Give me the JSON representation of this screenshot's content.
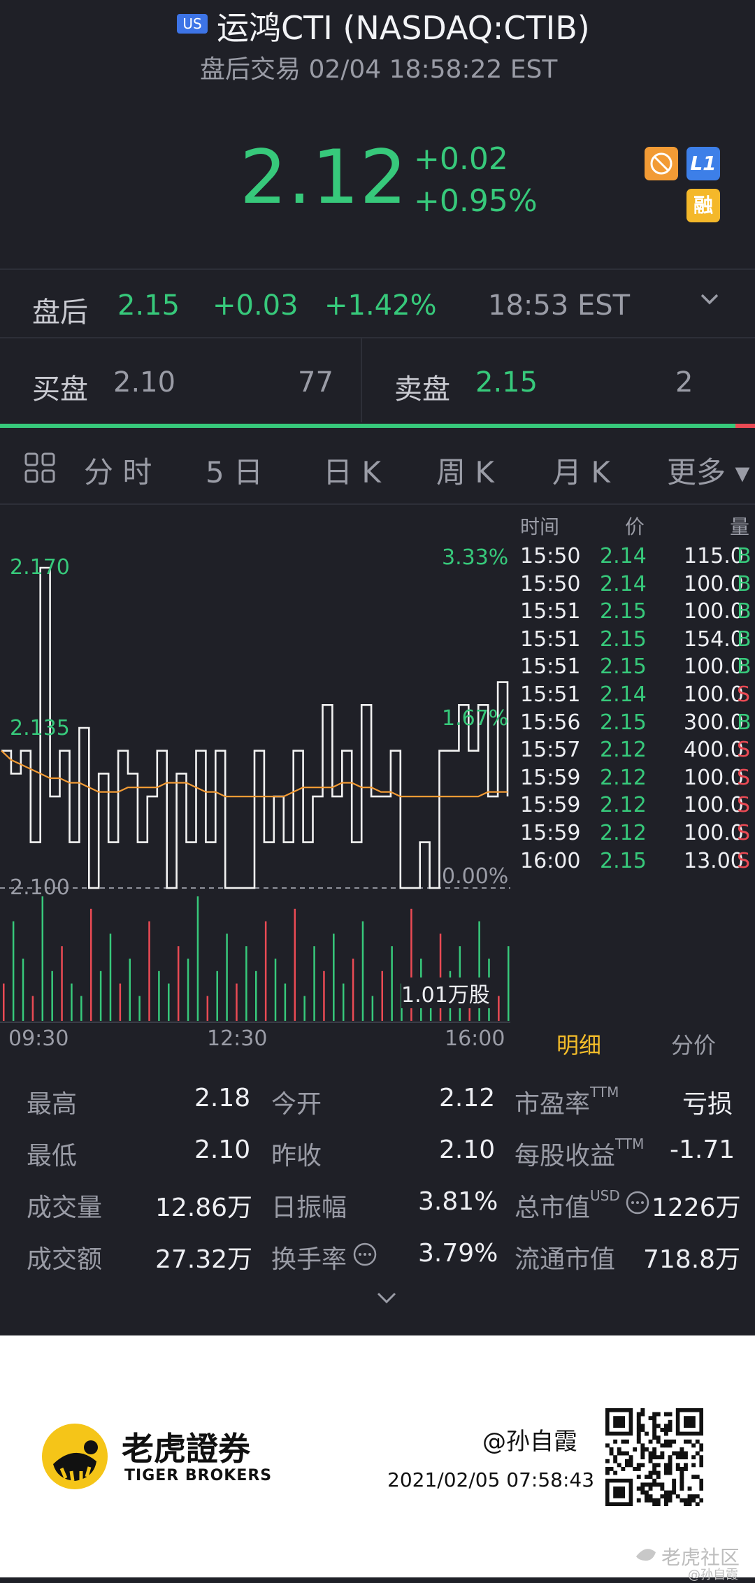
{
  "header": {
    "market_badge": "US",
    "title": "运鸿CTI (NASDAQ:CTIB)",
    "subtitle": "盘后交易 02/04 18:58:22 EST",
    "price": "2.12",
    "change": "+0.02",
    "change_pct": "+0.95%",
    "badge_l1": "L1",
    "badge_margin": "融"
  },
  "after_hours": {
    "label": "盘后",
    "price": "2.15",
    "change": "+0.03",
    "change_pct": "+1.42%",
    "time": "18:53 EST"
  },
  "bid_ask": {
    "bid_label": "买盘",
    "bid_price": "2.10",
    "bid_size": "77",
    "ask_label": "卖盘",
    "ask_price": "2.15",
    "ask_size": "2"
  },
  "tabs": [
    "分 时",
    "5 日",
    "日 K",
    "周 K",
    "月 K",
    "更多 ▾"
  ],
  "chart_labels": {
    "price_high": "2.170",
    "price_mid": "2.135",
    "price_low": "2.100",
    "pct_high": "3.33%",
    "pct_mid": "1.67%",
    "pct_low": "0.00%",
    "volume": "1.01万股",
    "time_start": "09:30",
    "time_mid": "12:30",
    "time_end": "16:00"
  },
  "chart_data": {
    "type": "line",
    "x_range": [
      "09:30",
      "16:00"
    ],
    "ylim": [
      2.1,
      2.17
    ],
    "series": [
      {
        "values": [
          2.13,
          2.125,
          2.13,
          2.11,
          2.17,
          2.12,
          2.13,
          2.11,
          2.135,
          2.1,
          2.125,
          2.11,
          2.13,
          2.125,
          2.11,
          2.12,
          2.13,
          2.1,
          2.125,
          2.11,
          2.13,
          2.11,
          2.13,
          2.1,
          2.1,
          2.1,
          2.13,
          2.11,
          2.12,
          2.11,
          2.13,
          2.11,
          2.12,
          2.14,
          2.12,
          2.13,
          2.11,
          2.14,
          2.12,
          2.12,
          2.13,
          2.1,
          2.1,
          2.11,
          2.1,
          2.13,
          2.13,
          2.14,
          2.13,
          2.14,
          2.12,
          2.145,
          2.12
        ]
      },
      {
        "values": [
          2.13,
          2.128,
          2.127,
          2.126,
          2.125,
          2.124,
          2.124,
          2.123,
          2.123,
          2.122,
          2.121,
          2.121,
          2.121,
          2.122,
          2.122,
          2.122,
          2.122,
          2.123,
          2.123,
          2.123,
          2.122,
          2.121,
          2.121,
          2.12,
          2.12,
          2.12,
          2.12,
          2.12,
          2.12,
          2.12,
          2.121,
          2.122,
          2.122,
          2.122,
          2.122,
          2.123,
          2.123,
          2.122,
          2.122,
          2.121,
          2.121,
          2.12,
          2.12,
          2.12,
          2.12,
          2.12,
          2.12,
          2.12,
          2.12,
          2.12,
          2.121,
          2.121,
          2.121
        ]
      }
    ],
    "volume": [
      3,
      8,
      5,
      2,
      10,
      4,
      6,
      3,
      2,
      9,
      4,
      7,
      3,
      5,
      2,
      8,
      4,
      3,
      6,
      5,
      10,
      2,
      4,
      7,
      3,
      6,
      4,
      8,
      5,
      3,
      9,
      2,
      6,
      4,
      7,
      3,
      5,
      8,
      2,
      4,
      6,
      3,
      9,
      5,
      2,
      7,
      4,
      6,
      3,
      8,
      5,
      2,
      6
    ]
  },
  "trades": {
    "headers": {
      "time": "时间",
      "price": "价",
      "volume": "量"
    },
    "rows": [
      {
        "time": "15:50",
        "price": "2.14",
        "vol": "115.0",
        "side": "B"
      },
      {
        "time": "15:50",
        "price": "2.14",
        "vol": "100.0",
        "side": "B"
      },
      {
        "time": "15:51",
        "price": "2.15",
        "vol": "100.0",
        "side": "B"
      },
      {
        "time": "15:51",
        "price": "2.15",
        "vol": "154.0",
        "side": "B"
      },
      {
        "time": "15:51",
        "price": "2.15",
        "vol": "100.0",
        "side": "B"
      },
      {
        "time": "15:51",
        "price": "2.14",
        "vol": "100.0",
        "side": "S"
      },
      {
        "time": "15:56",
        "price": "2.15",
        "vol": "300.0",
        "side": "B"
      },
      {
        "time": "15:57",
        "price": "2.12",
        "vol": "400.0",
        "side": "S"
      },
      {
        "time": "15:59",
        "price": "2.12",
        "vol": "100.0",
        "side": "S"
      },
      {
        "time": "15:59",
        "price": "2.12",
        "vol": "100.0",
        "side": "S"
      },
      {
        "time": "15:59",
        "price": "2.12",
        "vol": "100.0",
        "side": "S"
      },
      {
        "time": "16:00",
        "price": "2.15",
        "vol": "13.00",
        "side": "S"
      }
    ],
    "tab_detail": "明细",
    "tab_price": "分价"
  },
  "stats": {
    "high_label": "最高",
    "high": "2.18",
    "low_label": "最低",
    "low": "2.10",
    "vol_label": "成交量",
    "vol": "12.86万",
    "turnover_label": "成交额",
    "turnover": "27.32万",
    "open_label": "今开",
    "open": "2.12",
    "prev_label": "昨收",
    "prev": "2.10",
    "amp_label": "日振幅",
    "amp": "3.81%",
    "rate_label": "换手率",
    "rate": "3.79%",
    "pe_label": "市盈率",
    "pe_sup": "TTM",
    "pe": "亏损",
    "eps_label": "每股收益",
    "eps_sup": "TTM",
    "eps": "-1.71",
    "mcap_label": "总市值",
    "mcap_sup": "USD",
    "mcap": "1226万",
    "float_label": "流通市值",
    "float": "718.8万"
  },
  "footer": {
    "brand_cn": "老虎證券",
    "brand_en": "TIGER BROKERS",
    "user": "@孙自霞",
    "datetime": "2021/02/05 07:58:43",
    "watermark": "老虎社区",
    "watermark_user": "@孙自霞"
  },
  "colors": {
    "up": "#37c97b",
    "down": "#ea4a54",
    "accent": "#f4bd2a",
    "bg": "#1f2027"
  }
}
